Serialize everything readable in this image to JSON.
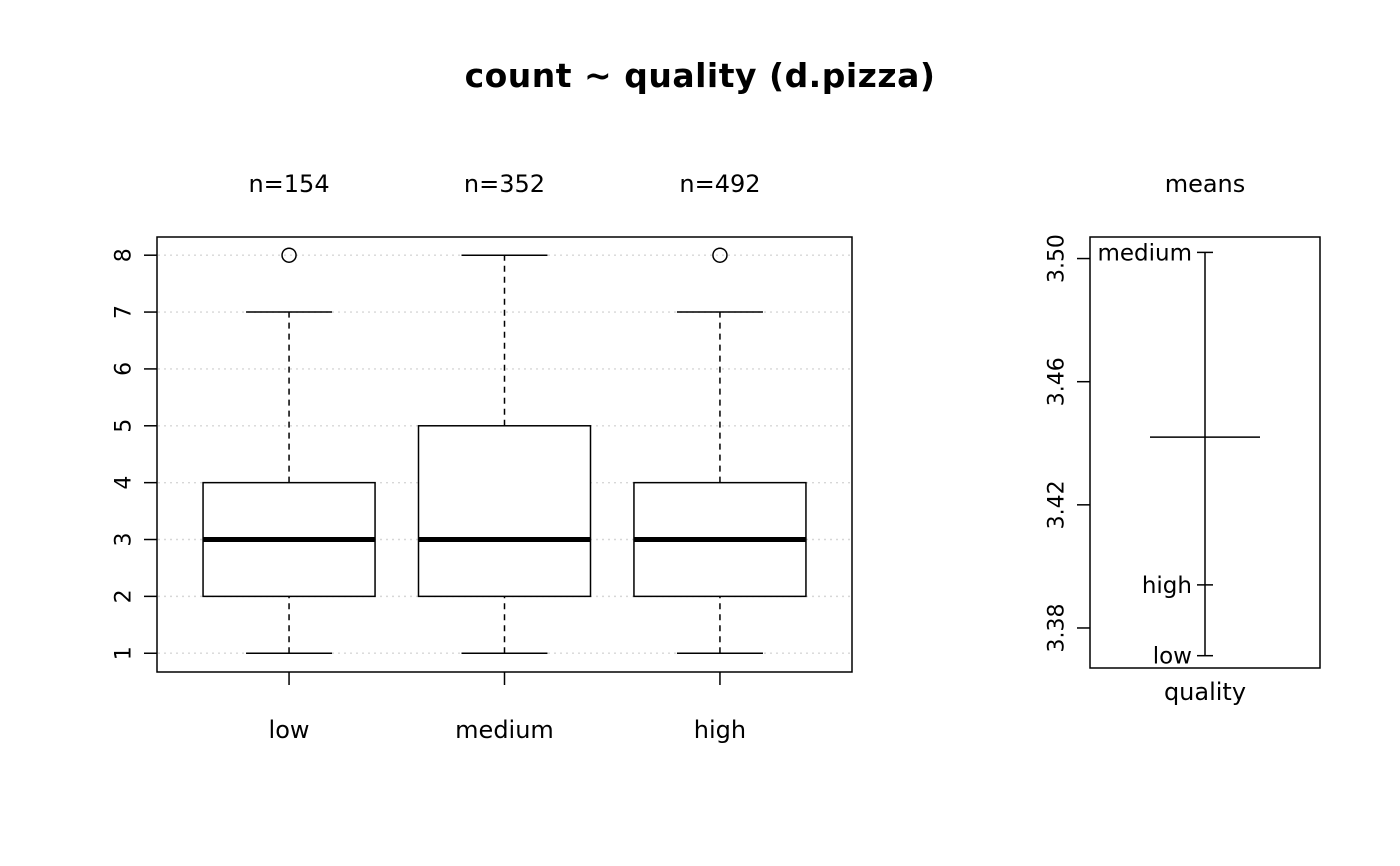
{
  "title": "count ~ quality (d.pizza)",
  "colors": {
    "foreground": "#000000",
    "background": "#ffffff",
    "gridline": "#d7d7d7"
  },
  "chart_data": [
    {
      "type": "boxplot",
      "panel": "main",
      "ylim": [
        0.67,
        8.32
      ],
      "yticks": [
        1,
        2,
        3,
        4,
        5,
        6,
        7,
        8
      ],
      "grid": "dotted-horizontal",
      "series": [
        {
          "name": "low",
          "n_label": "n=154",
          "n": 154,
          "whisker_low": 1,
          "q1": 2,
          "median": 3,
          "q3": 4,
          "whisker_high": 7,
          "outliers": [
            8
          ]
        },
        {
          "name": "medium",
          "n_label": "n=352",
          "n": 352,
          "whisker_low": 1,
          "q1": 2,
          "median": 3,
          "q3": 5,
          "whisker_high": 8,
          "outliers": []
        },
        {
          "name": "high",
          "n_label": "n=492",
          "n": 492,
          "whisker_low": 1,
          "q1": 2,
          "median": 3,
          "q3": 4,
          "whisker_high": 7,
          "outliers": [
            8
          ]
        }
      ]
    },
    {
      "type": "means",
      "panel": "side",
      "title": "means",
      "xlabel": "quality",
      "ylim": [
        3.367,
        3.507
      ],
      "yticks": [
        {
          "label": "3.38",
          "value": 3.38
        },
        {
          "label": "3.42",
          "value": 3.42
        },
        {
          "label": "3.46",
          "value": 3.46
        },
        {
          "label": "3.50",
          "value": 3.5
        }
      ],
      "points": [
        {
          "label": "low",
          "value": 3.371
        },
        {
          "label": "medium",
          "value": 3.502
        },
        {
          "label": "high",
          "value": 3.394
        }
      ],
      "grand_mean": 3.442
    }
  ]
}
